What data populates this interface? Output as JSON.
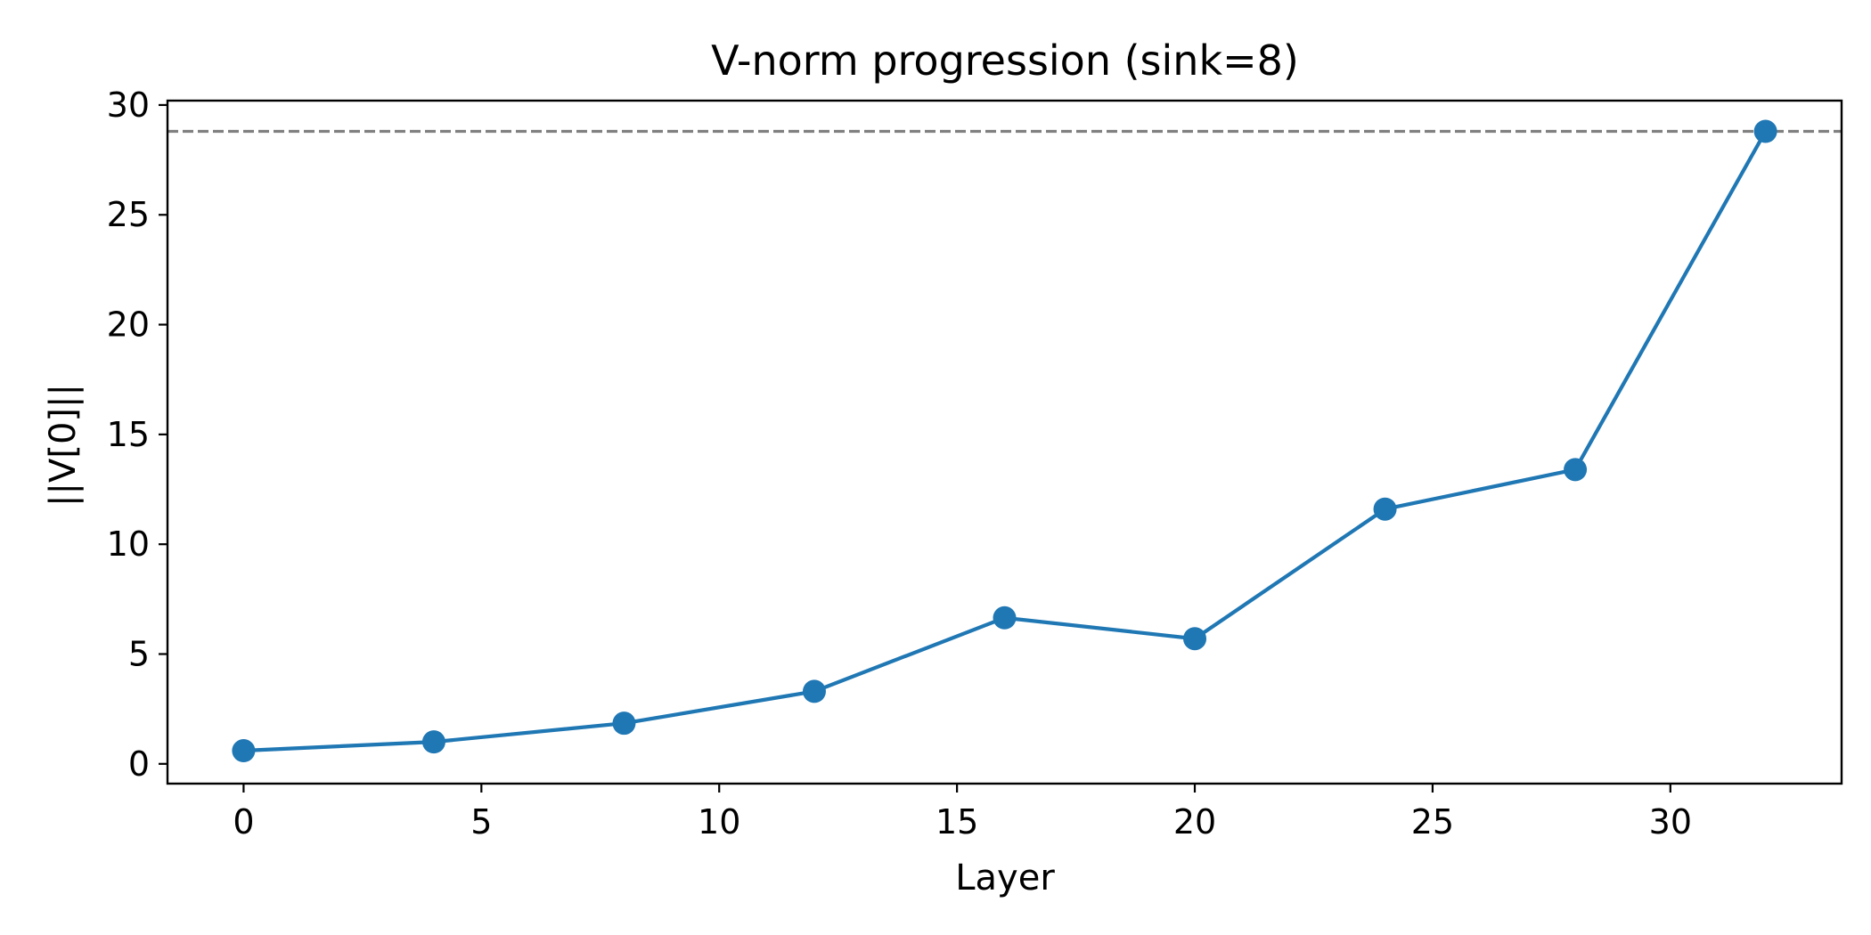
{
  "chart_data": {
    "type": "line",
    "title": "V-norm progression (sink=8)",
    "xlabel": "Layer",
    "ylabel": "||V[0]||",
    "xlim": [
      -1.6,
      33.6
    ],
    "ylim": [
      -0.9,
      30.2
    ],
    "xticks": [
      0,
      5,
      10,
      15,
      20,
      25,
      30
    ],
    "yticks": [
      0,
      5,
      10,
      15,
      20,
      25,
      30
    ],
    "grid": false,
    "reference_line": {
      "y": 28.8,
      "style": "dashed",
      "color": "#808080"
    },
    "series": [
      {
        "color": "#1f77b4",
        "marker": "circle",
        "x": [
          0,
          4,
          8,
          12,
          16,
          20,
          24,
          28,
          32
        ],
        "y": [
          0.6,
          1.0,
          1.85,
          3.3,
          6.65,
          5.7,
          11.6,
          13.4,
          28.8
        ]
      }
    ]
  }
}
